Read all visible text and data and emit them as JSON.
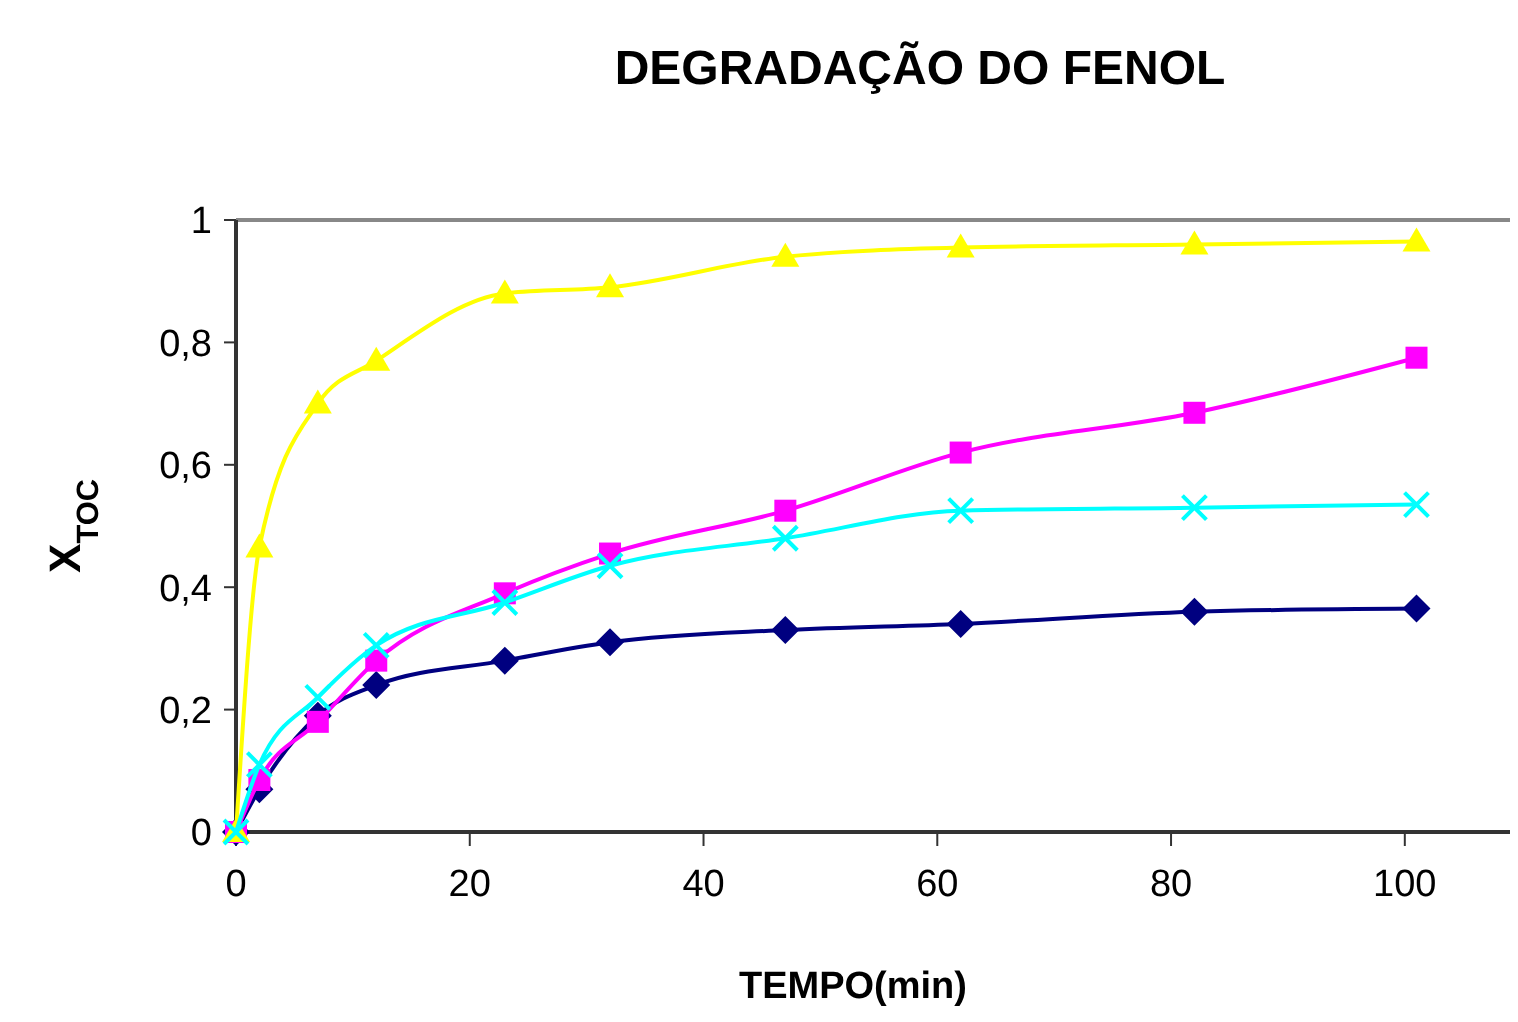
{
  "chart_data": {
    "type": "line",
    "title": "DEGRADAÇÃO DO FENOL",
    "xlabel": "TEMPO(min)",
    "ylabel": "X$_{TOC}$",
    "x": [
      0,
      2,
      7,
      12,
      23,
      32,
      47,
      62,
      82,
      101
    ],
    "series": [
      {
        "color": "#000080",
        "marker": "diamond",
        "values": [
          0,
          0.07,
          0.19,
          0.24,
          0.28,
          0.31,
          0.33,
          0.34,
          0.36,
          0.365
        ]
      },
      {
        "color": "#ff00ff",
        "marker": "square",
        "values": [
          0,
          0.085,
          0.18,
          0.28,
          0.39,
          0.455,
          0.525,
          0.62,
          0.685,
          0.775
        ]
      },
      {
        "color": "#ffff00",
        "marker": "triangle",
        "values": [
          0,
          0.465,
          0.7,
          0.77,
          0.88,
          0.89,
          0.94,
          0.955,
          0.96,
          0.965
        ]
      },
      {
        "color": "#00ffff",
        "marker": "cross",
        "values": [
          0,
          0.11,
          0.22,
          0.305,
          0.375,
          0.435,
          0.48,
          0.525,
          0.53,
          0.535
        ]
      }
    ],
    "xlim": [
      0,
      109
    ],
    "xticks": [
      0,
      20,
      40,
      60,
      80,
      100
    ],
    "ylim": [
      0,
      1
    ],
    "yticks": [
      0,
      {
        "value": 0.2,
        "label": "0,2"
      },
      {
        "value": 0.4,
        "label": "0,4"
      },
      {
        "value": 0.6,
        "label": "0,6"
      },
      {
        "value": 0.8,
        "label": "0,8"
      },
      1
    ],
    "grid": false,
    "line_style": "solid"
  }
}
